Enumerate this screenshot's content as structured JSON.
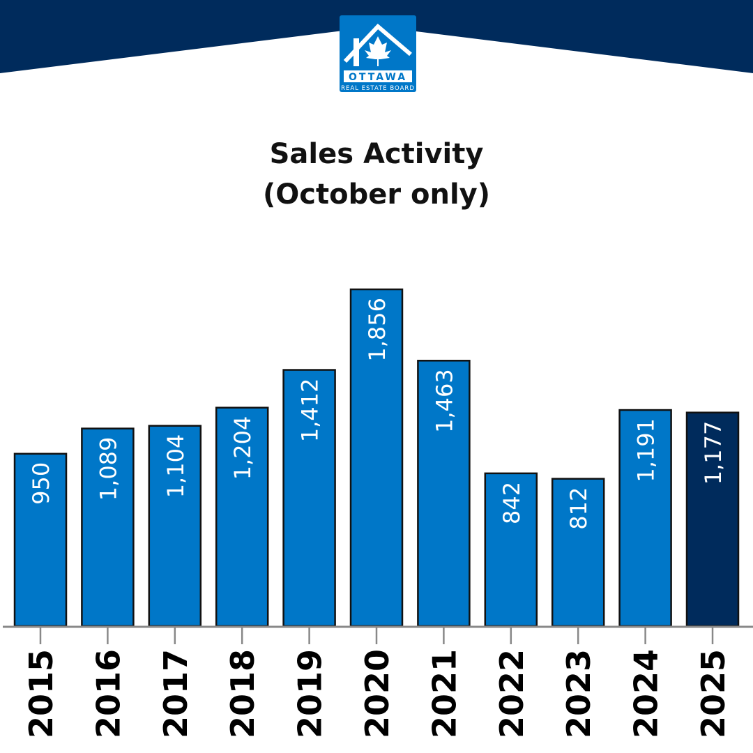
{
  "brand": {
    "name": "OTTAWA",
    "subtitle": "REAL ESTATE BOARD",
    "navy": "#002b5c",
    "blue": "#0077c8"
  },
  "chart_data": {
    "type": "bar",
    "title": "Sales Activity",
    "subtitle": "(October only)",
    "categories": [
      "2015",
      "2016",
      "2017",
      "2018",
      "2019",
      "2020",
      "2021",
      "2022",
      "2023",
      "2024",
      "2025"
    ],
    "values": [
      950,
      1089,
      1104,
      1204,
      1412,
      1856,
      1463,
      842,
      812,
      1191,
      1177
    ],
    "labels": [
      "950",
      "1,089",
      "1,104",
      "1,204",
      "1,412",
      "1,856",
      "1,463",
      "842",
      "812",
      "1,191",
      "1,177"
    ],
    "highlight_index": 10,
    "colors": {
      "bar": "#0077c8",
      "highlight": "#002b5c"
    },
    "ylim": [
      0,
      1856
    ],
    "xlabel": "",
    "ylabel": "",
    "grid": false
  }
}
